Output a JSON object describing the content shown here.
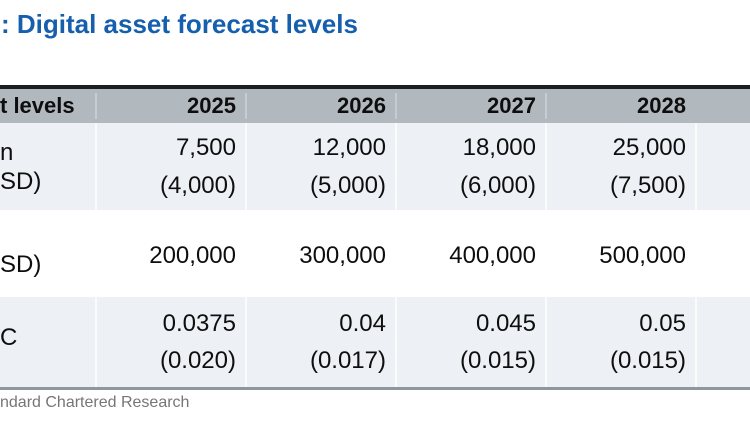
{
  "title": ": Digital asset forecast levels",
  "table": {
    "header": {
      "label": "t levels",
      "years": [
        "2025",
        "2026",
        "2027",
        "2028"
      ]
    },
    "rows": [
      {
        "label_lines": [
          "n",
          "SD)"
        ],
        "cells": [
          {
            "main": "7,500",
            "sub": "(4,000)"
          },
          {
            "main": "12,000",
            "sub": "(5,000)"
          },
          {
            "main": "18,000",
            "sub": "(6,000)"
          },
          {
            "main": "25,000",
            "sub": "(7,500)"
          }
        ]
      },
      {
        "label_lines": [
          "SD)"
        ],
        "cells": [
          {
            "main": "200,000"
          },
          {
            "main": "300,000"
          },
          {
            "main": "400,000"
          },
          {
            "main": "500,000"
          }
        ]
      },
      {
        "label_lines": [
          "C"
        ],
        "cells": [
          {
            "main": "0.0375",
            "sub": "(0.020)"
          },
          {
            "main": "0.04",
            "sub": "(0.017)"
          },
          {
            "main": "0.045",
            "sub": "(0.015)"
          },
          {
            "main": "0.05",
            "sub": "(0.015)"
          }
        ]
      }
    ]
  },
  "footer": {
    "source": "ndard Chartered Research"
  },
  "colors": {
    "title_blue": "#155fad",
    "header_bg": "#b1b8be",
    "row_tint": "#edf0f4",
    "top_border": "#1c1f22",
    "bottom_border": "#8d97a0",
    "footer_text": "#767676"
  }
}
